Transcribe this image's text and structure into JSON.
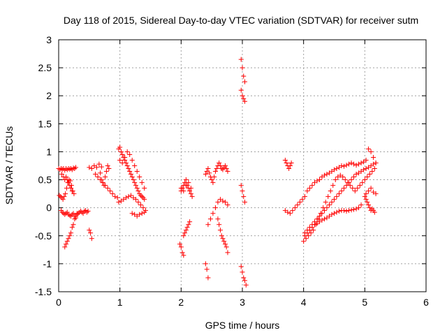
{
  "chart_data": {
    "type": "scatter",
    "title": "Day 118 of 2015, Sidereal Day-to-day VTEC variation (SDTVAR) for receiver sutm",
    "xlabel": "GPS time / hours",
    "ylabel": "SDTVAR / TECUs",
    "xlim": [
      0,
      6
    ],
    "ylim": [
      -1.5,
      3
    ],
    "xticks": [
      "0",
      "1",
      "2",
      "3",
      "4",
      "5",
      "6"
    ],
    "yticks": [
      "-1.5",
      "-1",
      "-0.5",
      "0",
      "0.5",
      "1",
      "1.5",
      "2",
      "2.5",
      "3"
    ],
    "grid": true,
    "marker": "+",
    "color": "#ff0000",
    "series": [
      {
        "name": "SDTVAR",
        "x": [
          0.0,
          0.02,
          0.04,
          0.06,
          0.08,
          0.1,
          0.12,
          0.14,
          0.16,
          0.18,
          0.2,
          0.22,
          0.24,
          0.26,
          0.28,
          0.01,
          0.03,
          0.05,
          0.07,
          0.09,
          0.11,
          0.13,
          0.15,
          0.17,
          0.19,
          0.21,
          0.23,
          0.25,
          0.04,
          0.06,
          0.08,
          0.1,
          0.12,
          0.14,
          0.16,
          0.18,
          0.2,
          0.22,
          0.24,
          0.26,
          0.28,
          0.3,
          0.32,
          0.34,
          0.36,
          0.38,
          0.4,
          0.42,
          0.44,
          0.46,
          0.48,
          0.05,
          0.08,
          0.1,
          0.12,
          0.14,
          0.16,
          0.18,
          0.2,
          0.22,
          0.1,
          0.12,
          0.14,
          0.16,
          0.18,
          0.2,
          0.22,
          0.24,
          0.26,
          0.28,
          0.3,
          0.5,
          0.52,
          0.54,
          0.5,
          0.54,
          0.58,
          0.62,
          0.66,
          0.7,
          0.6,
          0.64,
          0.68,
          0.72,
          0.76,
          0.8,
          0.84,
          0.88,
          0.92,
          0.96,
          0.68,
          0.7,
          0.72,
          0.74,
          0.76,
          0.78,
          0.8,
          0.82,
          0.98,
          1.0,
          1.02,
          1.04,
          1.06,
          1.08,
          1.1,
          1.12,
          1.14,
          1.16,
          1.18,
          1.2,
          1.22,
          1.24,
          1.26,
          1.28,
          1.3,
          1.32,
          1.34,
          1.36,
          1.38,
          1.4,
          0.98,
          1.02,
          1.06,
          1.1,
          1.14,
          1.18,
          1.22,
          1.26,
          1.3,
          1.34,
          1.38,
          1.42,
          1.0,
          1.04,
          1.08,
          1.12,
          1.16,
          1.2,
          1.24,
          1.28,
          1.32,
          1.36,
          1.4,
          1.2,
          1.24,
          1.28,
          1.32,
          1.36,
          1.4,
          1.98,
          2.0,
          2.02,
          2.04,
          2.0,
          2.02,
          2.04,
          2.06,
          2.08,
          2.1,
          2.12,
          2.14,
          2.16,
          2.18,
          2.04,
          2.06,
          2.08,
          2.1,
          2.12,
          2.14,
          2.0,
          2.04,
          2.08,
          2.12,
          2.16,
          2.4,
          2.42,
          2.44,
          2.46,
          2.48,
          2.5,
          2.52,
          2.54,
          2.56,
          2.58,
          2.6,
          2.62,
          2.64,
          2.66,
          2.68,
          2.7,
          2.72,
          2.74,
          2.76,
          2.4,
          2.42,
          2.44,
          2.44,
          2.48,
          2.52,
          2.56,
          2.6,
          2.64,
          2.68,
          2.72,
          2.76,
          2.6,
          2.62,
          2.64,
          2.66,
          2.68,
          2.7,
          2.72,
          2.74,
          2.76,
          2.98,
          3.0,
          3.02,
          3.04,
          2.98,
          3.0,
          3.02,
          3.04,
          2.98,
          3.0,
          3.02,
          3.04,
          2.98,
          3.0,
          3.02,
          3.04,
          3.06,
          3.7,
          3.72,
          3.74,
          3.76,
          3.78,
          3.8,
          3.7,
          3.74,
          3.78,
          3.82,
          3.86,
          3.9,
          3.94,
          3.98,
          4.02,
          4.06,
          4.1,
          4.14,
          4.18,
          4.22,
          4.26,
          4.3,
          4.34,
          4.38,
          4.42,
          4.46,
          4.5,
          4.54,
          4.58,
          4.62,
          4.66,
          4.7,
          4.74,
          4.78,
          4.82,
          4.86,
          4.9,
          4.94,
          4.98,
          5.02,
          5.06,
          5.1,
          5.14,
          5.18,
          4.02,
          4.06,
          4.1,
          4.14,
          4.18,
          4.22,
          4.26,
          4.3,
          4.34,
          4.38,
          4.42,
          4.46,
          4.5,
          4.54,
          4.58,
          4.62,
          4.66,
          4.7,
          4.74,
          4.78,
          4.82,
          4.86,
          4.9,
          4.94,
          4.98,
          5.02,
          5.06,
          5.1,
          5.14,
          5.18,
          4.0,
          4.04,
          4.08,
          4.12,
          4.16,
          4.2,
          4.24,
          4.28,
          4.32,
          4.36,
          4.4,
          4.44,
          4.48,
          4.52,
          4.56,
          4.6,
          4.64,
          4.68,
          4.72,
          4.76,
          4.8,
          4.84,
          4.88,
          4.92,
          4.96,
          5.0,
          5.04,
          5.08,
          5.12,
          5.16,
          4.02,
          4.06,
          4.1,
          4.14,
          4.18,
          4.22,
          4.26,
          4.3,
          4.34,
          4.38,
          4.42,
          4.46,
          4.5,
          4.54,
          4.58,
          4.62,
          4.66,
          4.7,
          4.74,
          4.78,
          4.82,
          4.86,
          4.9,
          4.94,
          5.0,
          5.02,
          5.04,
          5.06,
          5.08,
          5.1,
          5.12,
          5.14,
          5.16,
          5.02,
          5.06,
          5.1,
          5.14,
          5.18
        ],
        "y": [
          0.7,
          0.68,
          0.7,
          0.69,
          0.7,
          0.67,
          0.7,
          0.68,
          0.7,
          0.69,
          0.7,
          0.68,
          0.71,
          0.7,
          0.72,
          0.22,
          0.2,
          0.18,
          0.15,
          0.2,
          0.25,
          0.35,
          0.45,
          0.5,
          0.48,
          0.4,
          0.3,
          0.25,
          -0.05,
          -0.08,
          -0.1,
          -0.12,
          -0.1,
          -0.08,
          -0.12,
          -0.14,
          -0.15,
          -0.12,
          -0.1,
          -0.15,
          -0.18,
          -0.12,
          -0.1,
          -0.08,
          -0.06,
          -0.08,
          -0.1,
          -0.06,
          -0.05,
          -0.08,
          -0.06,
          0.6,
          0.55,
          0.5,
          0.55,
          0.5,
          0.45,
          0.4,
          0.35,
          0.3,
          -0.7,
          -0.65,
          -0.6,
          -0.55,
          -0.5,
          -0.45,
          -0.35,
          -0.3,
          -0.2,
          -0.15,
          -0.1,
          -0.4,
          -0.45,
          -0.55,
          0.72,
          0.7,
          0.75,
          0.72,
          0.78,
          0.73,
          0.6,
          0.55,
          0.5,
          0.45,
          0.4,
          0.35,
          0.3,
          0.25,
          0.2,
          0.18,
          0.62,
          0.5,
          0.45,
          0.4,
          0.55,
          0.65,
          0.75,
          0.7,
          1.05,
          1.08,
          1.0,
          0.95,
          0.9,
          0.85,
          0.8,
          0.75,
          0.7,
          0.65,
          0.6,
          0.55,
          0.5,
          0.45,
          0.4,
          0.35,
          0.3,
          0.25,
          0.22,
          0.2,
          0.18,
          0.15,
          0.1,
          0.12,
          0.15,
          0.18,
          0.2,
          0.22,
          0.18,
          0.15,
          0.1,
          0.05,
          0.0,
          -0.05,
          0.85,
          0.8,
          0.9,
          1.0,
          0.95,
          0.85,
          0.75,
          0.65,
          0.55,
          0.45,
          0.35,
          -0.1,
          -0.12,
          -0.15,
          -0.12,
          -0.1,
          -0.08,
          -0.65,
          -0.7,
          -0.8,
          -0.85,
          0.3,
          0.35,
          0.4,
          0.45,
          0.5,
          0.4,
          0.35,
          0.3,
          0.25,
          0.2,
          -0.5,
          -0.45,
          -0.4,
          -0.35,
          -0.3,
          -0.25,
          0.35,
          0.3,
          0.4,
          0.45,
          0.35,
          0.6,
          0.65,
          0.7,
          0.62,
          0.55,
          0.5,
          0.45,
          0.55,
          0.65,
          0.7,
          0.75,
          0.8,
          0.75,
          0.7,
          0.68,
          0.72,
          0.75,
          0.7,
          0.65,
          -1.0,
          -1.1,
          -1.25,
          -0.3,
          -0.2,
          -0.1,
          0.0,
          0.1,
          0.15,
          0.12,
          0.1,
          0.05,
          -0.2,
          -0.3,
          -0.4,
          -0.5,
          -0.55,
          -0.6,
          -0.65,
          -0.7,
          -0.8,
          2.65,
          2.5,
          2.35,
          2.25,
          2.1,
          2.0,
          1.95,
          1.9,
          0.4,
          0.3,
          0.2,
          0.1,
          -1.05,
          -1.15,
          -1.25,
          -1.3,
          -1.38,
          0.85,
          0.8,
          0.75,
          0.7,
          0.75,
          0.8,
          -0.05,
          -0.08,
          -0.1,
          -0.05,
          0.0,
          0.05,
          0.1,
          0.15,
          0.2,
          0.3,
          0.35,
          0.4,
          0.45,
          0.48,
          0.5,
          0.55,
          0.58,
          0.6,
          0.62,
          0.65,
          0.68,
          0.7,
          0.72,
          0.75,
          0.74,
          0.76,
          0.78,
          0.8,
          0.78,
          0.76,
          0.78,
          0.8,
          0.82,
          0.85,
          1.05,
          1.0,
          0.9,
          0.8,
          -0.45,
          -0.4,
          -0.35,
          -0.3,
          -0.25,
          -0.2,
          -0.15,
          -0.1,
          -0.05,
          0.0,
          0.05,
          0.1,
          0.15,
          0.2,
          0.25,
          0.3,
          0.35,
          0.4,
          0.45,
          0.5,
          0.55,
          0.6,
          0.62,
          0.65,
          0.68,
          0.7,
          0.72,
          0.75,
          0.78,
          0.8,
          -0.6,
          -0.55,
          -0.5,
          -0.45,
          -0.4,
          -0.3,
          -0.2,
          -0.1,
          0.0,
          0.1,
          0.2,
          0.3,
          0.4,
          0.5,
          0.55,
          0.58,
          0.55,
          0.5,
          0.45,
          0.4,
          0.35,
          0.3,
          0.35,
          0.4,
          0.45,
          0.5,
          0.55,
          0.6,
          0.65,
          0.7,
          -0.5,
          -0.45,
          -0.4,
          -0.35,
          -0.3,
          -0.28,
          -0.25,
          -0.22,
          -0.2,
          -0.18,
          -0.15,
          -0.12,
          -0.1,
          -0.08,
          -0.06,
          -0.05,
          -0.05,
          -0.06,
          -0.05,
          -0.04,
          -0.03,
          -0.02,
          0.0,
          0.05,
          0.2,
          0.15,
          0.1,
          0.05,
          0.0,
          -0.05,
          -0.02,
          -0.05,
          -0.08,
          0.25,
          0.3,
          0.35,
          0.28,
          0.25
        ]
      }
    ]
  }
}
